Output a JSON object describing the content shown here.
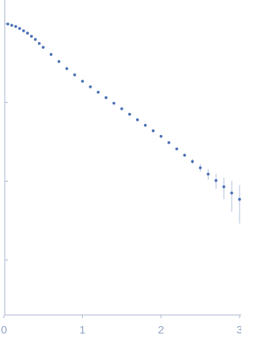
{
  "chart_data": {
    "type": "scatter",
    "color": "#4a6fb5",
    "error_color": "#b3c1de",
    "axis_color": "#a9b6cf",
    "yscale": "log",
    "x": [
      0.05,
      0.1,
      0.15,
      0.2,
      0.25,
      0.3,
      0.35,
      0.4,
      0.45,
      0.5,
      0.6,
      0.7,
      0.8,
      0.9,
      1.0,
      1.1,
      1.2,
      1.3,
      1.4,
      1.5,
      1.6,
      1.7,
      1.8,
      1.9,
      2.0,
      2.1,
      2.2,
      2.3,
      2.4,
      2.5,
      2.6,
      2.7,
      2.8,
      2.9,
      3.0
    ],
    "values": [
      0.99,
      0.955,
      0.923,
      0.871,
      0.813,
      0.759,
      0.692,
      0.631,
      0.562,
      0.501,
      0.407,
      0.331,
      0.269,
      0.224,
      0.186,
      0.158,
      0.135,
      0.115,
      0.0977,
      0.0832,
      0.0708,
      0.0603,
      0.0513,
      0.0437,
      0.0372,
      0.0309,
      0.0257,
      0.0214,
      0.0178,
      0.0148,
      0.0123,
      0.0102,
      0.0085,
      0.00708,
      0.00589
    ],
    "errors": [
      0.01,
      0.008,
      0.007,
      0.006,
      0.005,
      0.004,
      0.004,
      0.003,
      0.003,
      0.003,
      0.002,
      0.002,
      0.0015,
      0.0012,
      0.001,
      0.0009,
      0.0008,
      0.0007,
      0.0006,
      0.0006,
      0.0005,
      0.0005,
      0.0005,
      0.0005,
      0.0006,
      0.0007,
      0.0008,
      0.001,
      0.0013,
      0.0016,
      0.0019,
      0.0022,
      0.0026,
      0.003,
      0.003
    ],
    "xlim": [
      0,
      3
    ],
    "xticks": [
      0,
      1,
      2,
      3
    ],
    "ylim": [
      0.0002,
      2
    ],
    "yticks": [
      1,
      0.1,
      0.01,
      0.001
    ]
  }
}
